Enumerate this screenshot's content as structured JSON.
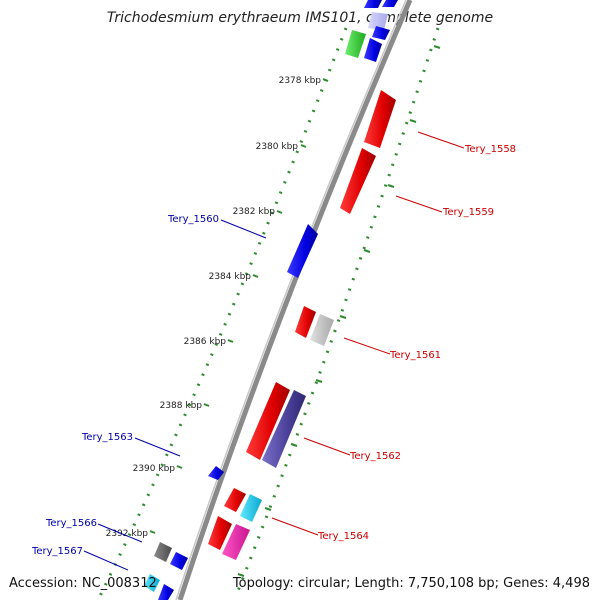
{
  "title": "Trichodesmium erythraeum IMS101, complete genome",
  "footer": {
    "accession": "Accession: NC_008312",
    "summary": "Topology: circular; Length: 7,750,108 bp; Genes: 4,498"
  },
  "kbp_ticks": [
    "2378 kbp",
    "2380 kbp",
    "2382 kbp",
    "2384 kbp",
    "2386 kbp",
    "2388 kbp",
    "2390 kbp",
    "2392 kbp"
  ],
  "genes": [
    {
      "name": "Tery_1558",
      "strand": "+",
      "color": "#ee0000"
    },
    {
      "name": "Tery_1559",
      "strand": "+",
      "color": "#ee0000"
    },
    {
      "name": "Tery_1560",
      "strand": "-",
      "color": "#0000dd"
    },
    {
      "name": "Tery_1561",
      "strand": "+",
      "color": "#ee0000"
    },
    {
      "name": "Tery_1562",
      "strand": "+",
      "color": "#ee0000"
    },
    {
      "name": "Tery_1563",
      "strand": "-",
      "color": "#0000dd"
    },
    {
      "name": "Tery_1564",
      "strand": "+",
      "color": "#ee0000"
    },
    {
      "name": "Tery_1566",
      "strand": "-",
      "color": "#0000dd"
    },
    {
      "name": "Tery_1567",
      "strand": "-",
      "color": "#0000dd"
    }
  ],
  "colors": {
    "forward_label": "#cc0000",
    "reverse_label": "#0000aa",
    "backbone": "#888888",
    "tick_dots": "#2e8b2e"
  }
}
